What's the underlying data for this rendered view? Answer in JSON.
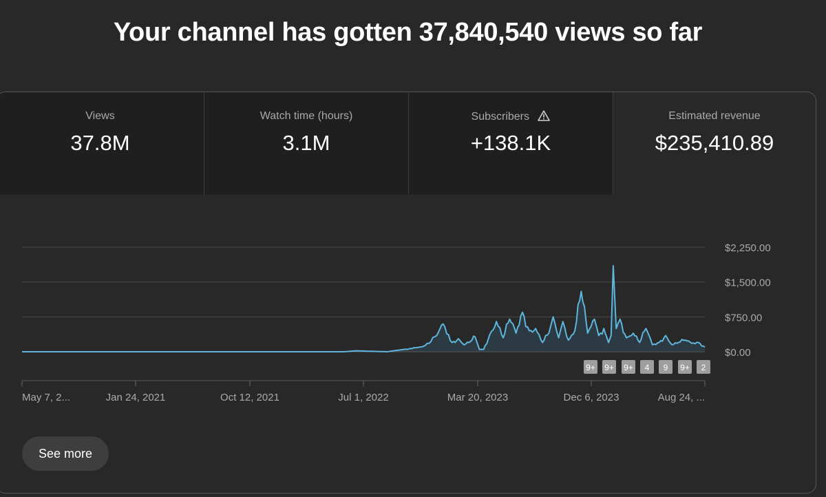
{
  "headline": "Your channel has gotten 37,840,540 views so far",
  "metrics": [
    {
      "label": "Views",
      "value": "37.8M"
    },
    {
      "label": "Watch time (hours)",
      "value": "3.1M"
    },
    {
      "label": "Subscribers",
      "value": "+138.1K",
      "icon": "warning-icon"
    },
    {
      "label": "Estimated revenue",
      "value": "$235,410.89"
    }
  ],
  "active_metric": "Estimated revenue",
  "see_more_label": "See more",
  "colors": {
    "background": "#282828",
    "line": "#5fb6dd",
    "area": "#2c3a44",
    "badge": "#9e9e9e"
  },
  "chart_data": {
    "type": "area",
    "series": [
      {
        "x": [
          "2020-05-07",
          "2022-06-01",
          "2022-06-30",
          "2022-09-10",
          "2022-10-20",
          "2022-11-20",
          "2022-12-05",
          "2022-12-18",
          "2023-01-05",
          "2023-01-20",
          "2023-02-10",
          "2023-02-25",
          "2023-03-10",
          "2023-03-25",
          "2023-04-05",
          "2023-04-15",
          "2023-04-25",
          "2023-05-10",
          "2023-05-25",
          "2023-06-10",
          "2023-06-25",
          "2023-07-10",
          "2023-07-25",
          "2023-08-10",
          "2023-08-25",
          "2023-09-10",
          "2023-09-25",
          "2023-10-05",
          "2023-10-18",
          "2023-10-28",
          "2023-11-10",
          "2023-11-25",
          "2023-12-10",
          "2023-12-25",
          "2024-01-10",
          "2024-01-20",
          "2024-02-01",
          "2024-02-12",
          "2024-02-18",
          "2024-02-23",
          "2024-03-01",
          "2024-03-10",
          "2024-03-25",
          "2024-04-10",
          "2024-04-25",
          "2024-05-10",
          "2024-05-25",
          "2024-06-10",
          "2024-06-25",
          "2024-07-10",
          "2024-07-25",
          "2024-08-10",
          "2024-08-25",
          "2024-09-10",
          "2024-09-25"
        ],
        "y": [
          0,
          0,
          20,
          0,
          50,
          90,
          120,
          180,
          350,
          600,
          200,
          280,
          150,
          220,
          320,
          50,
          50,
          380,
          650,
          300,
          700,
          400,
          850,
          450,
          500,
          200,
          400,
          750,
          300,
          650,
          250,
          450,
          1300,
          400,
          700,
          350,
          500,
          200,
          350,
          1850,
          500,
          700,
          300,
          400,
          200,
          500,
          150,
          200,
          350,
          150,
          200,
          250,
          180,
          200,
          100
        ]
      }
    ],
    "xlabels": [
      "May 7, 2...",
      "Jan 24, 2021",
      "Oct 12, 2021",
      "Jul 1, 2022",
      "Mar 20, 2023",
      "Dec 6, 2023",
      "Aug 24, ..."
    ],
    "ytick_labels": [
      "$2,250.00",
      "$1,500.00",
      "$750.00",
      "$0.00"
    ],
    "yticks": [
      2250,
      1500,
      750,
      0
    ],
    "ylim": [
      0,
      2250
    ],
    "xlim": [
      "2020-05-07",
      "2024-09-25"
    ],
    "grid": true,
    "badges": [
      "9+",
      "9+",
      "9+",
      "4",
      "9",
      "9+",
      "2"
    ]
  }
}
